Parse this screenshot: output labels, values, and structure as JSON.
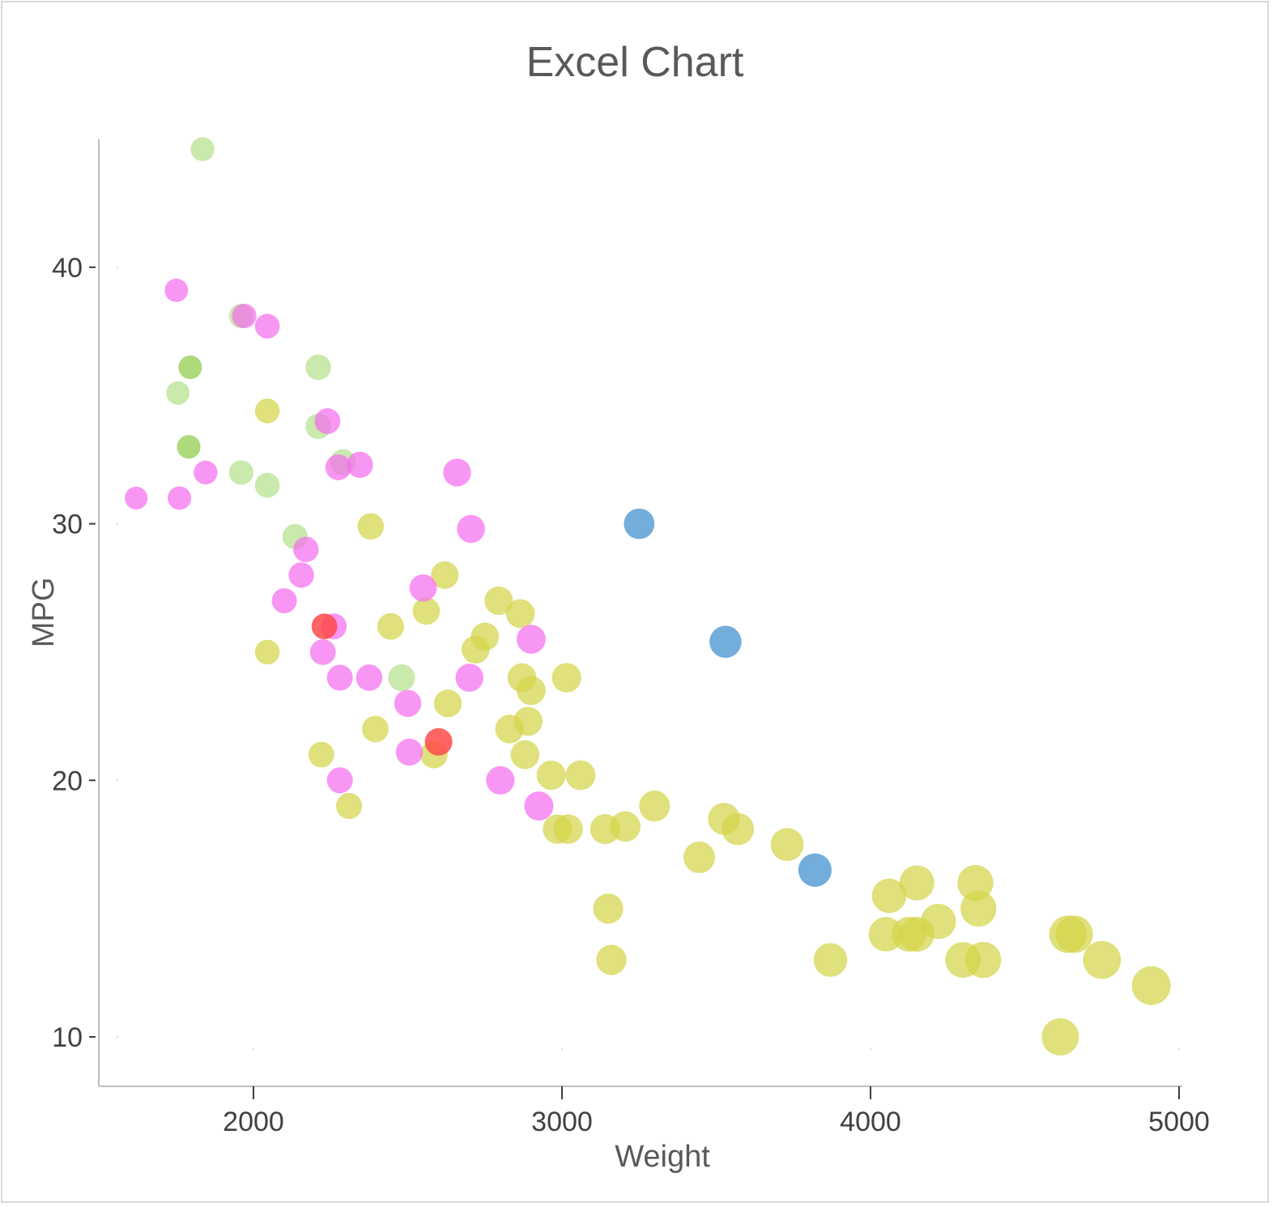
{
  "chart_data": {
    "type": "scatter",
    "title": "Excel Chart",
    "xlabel": "Weight",
    "ylabel": "MPG",
    "xlim": [
      1500,
      5000
    ],
    "ylim": [
      8,
      45
    ],
    "xticks": [
      2000,
      3000,
      4000,
      5000
    ],
    "yticks": [
      10,
      20,
      30,
      40
    ],
    "grid": false,
    "legend": "none",
    "bubble_size_encodes": "weight",
    "colors": {
      "yellow": "#d4d44a",
      "lightgreen": "#b5e08e",
      "green": "#8fcc4a",
      "pink": "#f56ef0",
      "blue": "#5b9fd6",
      "red": "#ff4a4a"
    },
    "series": [
      {
        "color_key": "yellow",
        "points": [
          [
            2045,
            34.4
          ],
          [
            2380,
            29.9
          ],
          [
            2620,
            28
          ],
          [
            2045,
            25
          ],
          [
            2445,
            26
          ],
          [
            2560,
            26.6
          ],
          [
            2220,
            21
          ],
          [
            2310,
            19
          ],
          [
            2395,
            22
          ],
          [
            2630,
            23
          ],
          [
            2585,
            21
          ],
          [
            2795,
            27
          ],
          [
            2865,
            26.5
          ],
          [
            2750,
            25.6
          ],
          [
            2720,
            25.1
          ],
          [
            2870,
            24
          ],
          [
            2900,
            23.5
          ],
          [
            3015,
            24
          ],
          [
            2890,
            22.3
          ],
          [
            2830,
            22
          ],
          [
            2880,
            21
          ],
          [
            2965,
            20.2
          ],
          [
            3060,
            20.2
          ],
          [
            2985,
            18.1
          ],
          [
            3020,
            18.1
          ],
          [
            3140,
            18.1
          ],
          [
            3205,
            18.2
          ],
          [
            3300,
            19
          ],
          [
            3525,
            18.5
          ],
          [
            3570,
            18.1
          ],
          [
            3445,
            17
          ],
          [
            3730,
            17.5
          ],
          [
            3150,
            15
          ],
          [
            3160,
            13
          ],
          [
            4060,
            15.5
          ],
          [
            4150,
            16
          ],
          [
            4340,
            16
          ],
          [
            4220,
            14.5
          ],
          [
            4350,
            15
          ],
          [
            4050,
            14
          ],
          [
            4125,
            14
          ],
          [
            4150,
            14
          ],
          [
            4300,
            13
          ],
          [
            4365,
            13
          ],
          [
            3870,
            13
          ],
          [
            4640,
            14
          ],
          [
            4660,
            14
          ],
          [
            4750,
            13
          ],
          [
            4910,
            12
          ],
          [
            4615,
            10
          ]
        ]
      },
      {
        "color_key": "lightgreen",
        "points": [
          [
            1835,
            44.6
          ],
          [
            1960,
            38.1
          ],
          [
            1755,
            35.1
          ],
          [
            2210,
            36.1
          ],
          [
            2210,
            33.8
          ],
          [
            1960,
            32
          ],
          [
            2045,
            31.5
          ],
          [
            2290,
            32.4
          ],
          [
            2135,
            29.5
          ],
          [
            2480,
            24
          ]
        ]
      },
      {
        "color_key": "green",
        "points": [
          [
            1795,
            36.1
          ],
          [
            1790,
            33
          ]
        ]
      },
      {
        "color_key": "pink",
        "points": [
          [
            1750,
            39.1
          ],
          [
            1970,
            38.1
          ],
          [
            2045,
            37.7
          ],
          [
            2240,
            34
          ],
          [
            2275,
            32.2
          ],
          [
            2345,
            32.3
          ],
          [
            1845,
            32
          ],
          [
            1620,
            31
          ],
          [
            1760,
            31
          ],
          [
            2660,
            32
          ],
          [
            2705,
            29.8
          ],
          [
            2170,
            29
          ],
          [
            2155,
            28
          ],
          [
            2100,
            27
          ],
          [
            2550,
            27.5
          ],
          [
            2260,
            26
          ],
          [
            2225,
            25
          ],
          [
            2280,
            24
          ],
          [
            2375,
            24
          ],
          [
            2700,
            24
          ],
          [
            2500,
            23
          ],
          [
            2900,
            25.5
          ],
          [
            2505,
            21.1
          ],
          [
            2280,
            20
          ],
          [
            2800,
            20
          ],
          [
            2925,
            19
          ]
        ]
      },
      {
        "color_key": "blue",
        "points": [
          [
            3250,
            30
          ],
          [
            3530,
            25.4
          ],
          [
            3820,
            16.5
          ]
        ]
      },
      {
        "color_key": "red",
        "points": [
          [
            2230,
            26
          ],
          [
            2600,
            21.5
          ]
        ]
      }
    ]
  }
}
